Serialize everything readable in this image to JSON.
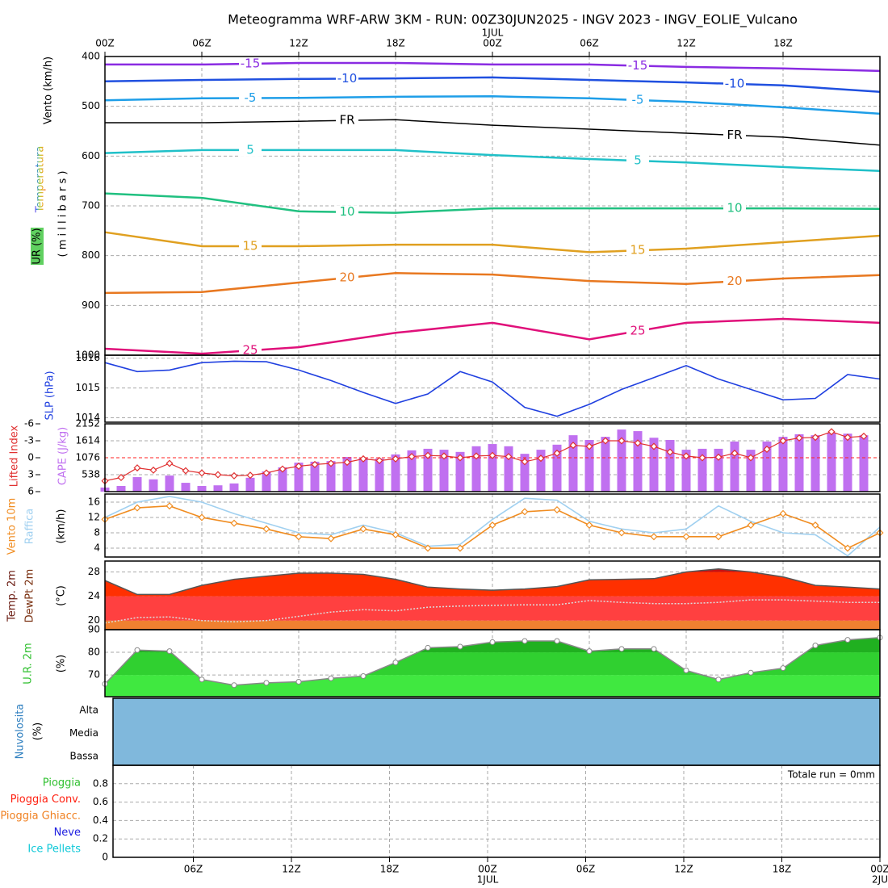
{
  "time_axis": {
    "xlim": [
      0,
      48
    ],
    "top_ticks": [
      {
        "value": 0,
        "label": "00Z"
      },
      {
        "value": 6,
        "label": "06Z"
      },
      {
        "value": 12,
        "label": "12Z"
      },
      {
        "value": 18,
        "label": "18Z"
      },
      {
        "value": 24,
        "label": "00Z"
      },
      {
        "value": 30,
        "label": "06Z"
      },
      {
        "value": 36,
        "label": "12Z"
      },
      {
        "value": 42,
        "label": "18Z"
      }
    ],
    "top_dates": [
      {
        "value": 24,
        "label": "1JUL"
      }
    ],
    "bottom_ticks": [
      {
        "value": 6,
        "label": "06Z"
      },
      {
        "value": 12,
        "label": "12Z"
      },
      {
        "value": 18,
        "label": "18Z"
      },
      {
        "value": 24,
        "label": "00Z"
      },
      {
        "value": 30,
        "label": "06Z"
      },
      {
        "value": 36,
        "label": "12Z"
      },
      {
        "value": 42,
        "label": "18Z"
      },
      {
        "value": 48,
        "label": "00Z"
      }
    ],
    "bottom_dates": [
      {
        "value": 24,
        "label": "1JUL"
      },
      {
        "value": 48,
        "label": "2JU"
      }
    ]
  },
  "chart_data": [
    {
      "type": "contour",
      "title": "Meteogramma WRF-ARW 3KM - RUN: 00Z30JUN2025 - INGV 2023 - INGV_EOLIE_Vulcano",
      "y_label": "( m i l l i b a r s )",
      "side_labels": [
        "Vento (km/h)",
        "Temperatura",
        "UR (%)"
      ],
      "ylim": [
        1000,
        400
      ],
      "yticks": [
        400,
        500,
        600,
        700,
        800,
        900,
        1000
      ],
      "x": [
        0,
        6,
        12,
        18,
        24,
        30,
        36,
        42,
        48
      ],
      "series": [
        {
          "name": "-15",
          "color": "#8a2be2",
          "values": [
            416,
            416,
            413,
            413,
            416,
            416,
            421,
            424,
            429
          ]
        },
        {
          "name": "-10",
          "color": "#2050e0",
          "values": [
            450,
            447,
            445,
            444,
            442,
            447,
            452,
            458,
            471
          ]
        },
        {
          "name": "-5",
          "color": "#1e9ee8",
          "values": [
            488,
            484,
            483,
            481,
            480,
            484,
            491,
            502,
            515
          ]
        },
        {
          "name": "FR",
          "color": "#000000",
          "values": [
            533,
            533,
            530,
            527,
            538,
            546,
            554,
            562,
            578
          ]
        },
        {
          "name": "5",
          "color": "#20c0c8",
          "values": [
            594,
            588,
            588,
            588,
            598,
            606,
            613,
            622,
            630
          ]
        },
        {
          "name": "10",
          "color": "#20c080",
          "values": [
            675,
            684,
            711,
            714,
            705,
            705,
            705,
            705,
            706
          ]
        },
        {
          "name": "15",
          "color": "#e0a020",
          "values": [
            753,
            781,
            781,
            778,
            778,
            793,
            786,
            773,
            760
          ]
        },
        {
          "name": "20",
          "color": "#e87820",
          "values": [
            875,
            873,
            854,
            835,
            838,
            851,
            857,
            846,
            839
          ]
        },
        {
          "name": "25",
          "color": "#e0107a",
          "values": [
            987,
            997,
            984,
            955,
            935,
            968,
            935,
            927,
            935
          ]
        }
      ]
    },
    {
      "type": "line",
      "y_label": "SLP (hPa)",
      "ylim": [
        1013.85,
        1016.1
      ],
      "yticks": [
        1014,
        1015,
        1016
      ],
      "x": [
        0,
        2,
        4,
        6,
        8,
        10,
        12,
        14,
        16,
        18,
        20,
        22,
        24,
        26,
        28,
        30,
        32,
        34,
        36,
        38,
        40,
        42,
        44,
        46,
        48
      ],
      "series": [
        {
          "color": "#2040e0",
          "values": [
            1015.85,
            1015.55,
            1015.6,
            1015.85,
            1015.9,
            1015.88,
            1015.6,
            1015.25,
            1014.85,
            1014.48,
            1014.8,
            1015.55,
            1015.2,
            1014.35,
            1014.05,
            1014.45,
            1014.95,
            1015.35,
            1015.75,
            1015.3,
            1014.95,
            1014.6,
            1014.65,
            1015.45,
            1015.3
          ]
        }
      ]
    },
    {
      "type": "bar",
      "y_label": "CAPE (J/kg)",
      "y2_label": "Lifted Index",
      "ylim": [
        0,
        2152
      ],
      "yticks": [
        538,
        1076,
        1614,
        2152
      ],
      "y2lim": [
        6,
        -6
      ],
      "y2ticks": [
        -6,
        -3,
        0,
        3,
        6
      ],
      "reference_line": {
        "axis": "y2",
        "value": 0,
        "color": "#ff2020"
      },
      "x": [
        0,
        1,
        2,
        3,
        4,
        5,
        6,
        7,
        8,
        9,
        10,
        11,
        12,
        13,
        14,
        15,
        16,
        17,
        18,
        19,
        20,
        21,
        22,
        23,
        24,
        25,
        26,
        27,
        28,
        29,
        30,
        31,
        32,
        33,
        34,
        35,
        36,
        37,
        38,
        39,
        40,
        41,
        42,
        43,
        44,
        45,
        46,
        47
      ],
      "series": [
        {
          "color": "#c070f0",
          "values": [
            130,
            180,
            460,
            390,
            510,
            280,
            180,
            200,
            260,
            440,
            640,
            770,
            920,
            950,
            970,
            1100,
            1080,
            1050,
            1180,
            1310,
            1360,
            1330,
            1260,
            1440,
            1510,
            1440,
            1200,
            1330,
            1490,
            1790,
            1640,
            1740,
            1970,
            1920,
            1710,
            1640,
            1330,
            1360,
            1360,
            1590,
            1330,
            1590,
            1740,
            1820,
            1790,
            1870,
            1840,
            1790
          ]
        },
        {
          "color": "#e03030",
          "axis": "y2",
          "marker": "diamond",
          "values": [
            4.1,
            3.5,
            1.8,
            2.2,
            1.0,
            2.3,
            2.7,
            3.0,
            3.2,
            3.1,
            2.7,
            2.0,
            1.5,
            1.2,
            1.0,
            0.8,
            0.2,
            0.5,
            0.2,
            -0.2,
            -0.4,
            -0.3,
            0.0,
            -0.3,
            -0.4,
            -0.2,
            0.7,
            0.1,
            -0.8,
            -2.2,
            -2.0,
            -3.0,
            -3.0,
            -2.6,
            -2.0,
            -1.0,
            -0.3,
            0.0,
            -0.1,
            -0.8,
            0.0,
            -1.5,
            -3.0,
            -3.5,
            -3.6,
            -4.6,
            -3.6,
            -3.8
          ]
        }
      ]
    },
    {
      "type": "line",
      "y_label": "(km/h)",
      "ylim": [
        1.7,
        18.1
      ],
      "yticks": [
        4,
        8,
        12,
        16
      ],
      "x": [
        0,
        2,
        4,
        6,
        8,
        10,
        12,
        14,
        16,
        18,
        20,
        22,
        24,
        26,
        28,
        30,
        32,
        34,
        36,
        38,
        40,
        42,
        44,
        46,
        48
      ],
      "series": [
        {
          "name": "Raffica",
          "color": "#a0d0f0",
          "values": [
            12,
            16,
            17.5,
            16,
            13,
            10.5,
            8,
            7.5,
            10,
            8,
            4.5,
            5,
            11.5,
            17,
            16.5,
            11,
            9,
            8,
            9,
            15,
            11,
            8,
            7.5,
            2,
            9.5
          ]
        },
        {
          "name": "Vento 10m",
          "color": "#f08c20",
          "marker": "diamond",
          "values": [
            11.5,
            14.5,
            15,
            12,
            10.5,
            9,
            7,
            6.5,
            9,
            7.5,
            4,
            4,
            10,
            13.5,
            14,
            10,
            8,
            7,
            7,
            7,
            10,
            13,
            10,
            4,
            8
          ]
        }
      ]
    },
    {
      "type": "area",
      "y_label": "(°C)",
      "ylim": [
        18.5,
        29.8
      ],
      "yticks": [
        20,
        24,
        28
      ],
      "band_colors": [
        "#f08030",
        "#ff4040",
        "#ff3000",
        "#c81010"
      ],
      "x": [
        0,
        2,
        4,
        6,
        8,
        10,
        12,
        14,
        16,
        18,
        20,
        22,
        24,
        26,
        28,
        30,
        32,
        34,
        36,
        38,
        40,
        42,
        44,
        46,
        48
      ],
      "series": [
        {
          "name": "Temp. 2m",
          "color": "#555555",
          "values": [
            26.6,
            24.3,
            24.3,
            25.8,
            26.8,
            27.3,
            27.8,
            27.8,
            27.6,
            26.8,
            25.5,
            25.2,
            25.0,
            25.2,
            25.6,
            26.7,
            26.8,
            26.9,
            28.0,
            28.5,
            28.0,
            27.2,
            25.8,
            25.5,
            25.2
          ]
        },
        {
          "name": "DewPt 2m",
          "color": "#dddddd",
          "values": [
            19.6,
            20.5,
            20.6,
            20.0,
            19.8,
            20.0,
            20.7,
            21.4,
            21.8,
            21.6,
            22.2,
            22.4,
            22.5,
            22.6,
            22.6,
            23.3,
            23.0,
            22.8,
            22.8,
            23.0,
            23.4,
            23.4,
            23.2,
            23.0,
            23.0
          ]
        }
      ]
    },
    {
      "type": "area",
      "y_label": "(%)",
      "ylim": [
        60.4,
        90
      ],
      "yticks": [
        70,
        80,
        90
      ],
      "band_colors": [
        "#40e840",
        "#30d030",
        "#20b020",
        "#20b020"
      ],
      "x": [
        0,
        2,
        4,
        6,
        8,
        10,
        12,
        14,
        16,
        18,
        20,
        22,
        24,
        26,
        28,
        30,
        32,
        34,
        36,
        38,
        40,
        42,
        44,
        46,
        48
      ],
      "series": [
        {
          "name": "U.R. 2m",
          "color": "#888888",
          "marker": "circle",
          "values": [
            66,
            81,
            80.5,
            68,
            65.5,
            66.5,
            67,
            68.5,
            69.5,
            75.5,
            82,
            82.5,
            84.5,
            85,
            85,
            80.5,
            81.5,
            81.5,
            72,
            68,
            71,
            73,
            83,
            85.5,
            86.5
          ]
        }
      ]
    },
    {
      "type": "cloud",
      "y_label": "Nuvolosita",
      "unit_label": "(%)",
      "color": "#80b8dc",
      "levels": [
        "Alta",
        "Media",
        "Bassa"
      ]
    },
    {
      "type": "precip",
      "ylim": [
        0,
        1
      ],
      "yticks": [
        0,
        0.2,
        0.4,
        0.6,
        0.8
      ],
      "annotation": "Totale run = 0mm",
      "series": [
        {
          "name": "Pioggia",
          "color": "#30c030"
        },
        {
          "name": "Pioggia Conv.",
          "color": "#ff2010"
        },
        {
          "name": "Pioggia Ghiacc.",
          "color": "#f08020"
        },
        {
          "name": "Neve",
          "color": "#2020e0"
        },
        {
          "name": "Ice Pellets",
          "color": "#10c8d8"
        }
      ]
    }
  ]
}
